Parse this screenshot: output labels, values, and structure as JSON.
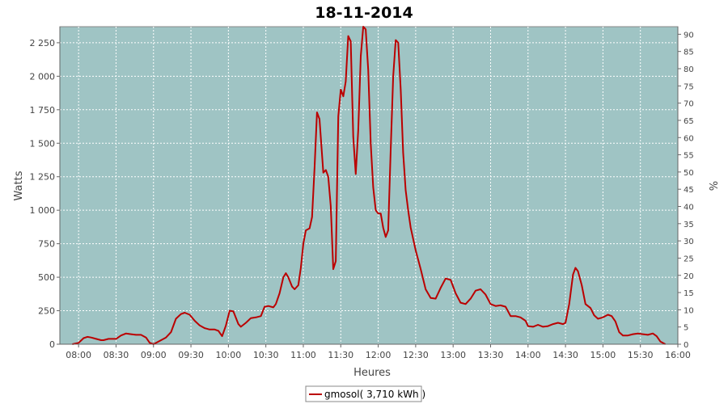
{
  "chart_data": {
    "type": "line",
    "title": "18-11-2014",
    "xlabel": "Heures",
    "ylabel": "Watts",
    "y2label": "%",
    "xlim_minutes": [
      465,
      960
    ],
    "ylim": [
      0,
      2370
    ],
    "y2lim": [
      0,
      92.2
    ],
    "x_ticks": [
      "08:00",
      "08:30",
      "09:00",
      "09:30",
      "10:00",
      "10:30",
      "11:00",
      "11:30",
      "12:00",
      "12:30",
      "13:00",
      "13:30",
      "14:00",
      "14:30",
      "15:00",
      "15:30",
      "16:00"
    ],
    "y_ticks": [
      {
        "value": 0,
        "label": "0"
      },
      {
        "value": 250,
        "label": "250"
      },
      {
        "value": 500,
        "label": "500"
      },
      {
        "value": 750,
        "label": "750"
      },
      {
        "value": 1000,
        "label": "1 000"
      },
      {
        "value": 1250,
        "label": "1 250"
      },
      {
        "value": 1500,
        "label": "1 500"
      },
      {
        "value": 1750,
        "label": "1 750"
      },
      {
        "value": 2000,
        "label": "2 000"
      },
      {
        "value": 2250,
        "label": "2 250"
      }
    ],
    "y2_ticks": [
      "0",
      "5",
      "10",
      "15",
      "20",
      "25",
      "30",
      "35",
      "40",
      "45",
      "50",
      "55",
      "60",
      "65",
      "70",
      "75",
      "80",
      "85",
      "90"
    ],
    "grid": true,
    "plot_background": "#9fc4c4",
    "legend_position": "bottom-center",
    "series": [
      {
        "name": "gmosol( 3,710 kWh )",
        "color": "#bb0000",
        "points": [
          [
            "07:55",
            0
          ],
          [
            "08:00",
            10
          ],
          [
            "08:04",
            45
          ],
          [
            "08:07",
            55
          ],
          [
            "08:10",
            50
          ],
          [
            "08:14",
            40
          ],
          [
            "08:18",
            30
          ],
          [
            "08:20",
            30
          ],
          [
            "08:24",
            40
          ],
          [
            "08:30",
            40
          ],
          [
            "08:34",
            65
          ],
          [
            "08:38",
            80
          ],
          [
            "08:42",
            75
          ],
          [
            "08:46",
            70
          ],
          [
            "08:50",
            70
          ],
          [
            "08:54",
            50
          ],
          [
            "08:57",
            10
          ],
          [
            "09:00",
            0
          ],
          [
            "09:04",
            20
          ],
          [
            "09:10",
            50
          ],
          [
            "09:14",
            90
          ],
          [
            "09:18",
            190
          ],
          [
            "09:22",
            225
          ],
          [
            "09:25",
            235
          ],
          [
            "09:29",
            220
          ],
          [
            "09:33",
            175
          ],
          [
            "09:37",
            140
          ],
          [
            "09:41",
            120
          ],
          [
            "09:45",
            110
          ],
          [
            "09:49",
            110
          ],
          [
            "09:52",
            100
          ],
          [
            "09:55",
            60
          ],
          [
            "09:58",
            140
          ],
          [
            "10:01",
            250
          ],
          [
            "10:04",
            245
          ],
          [
            "10:08",
            150
          ],
          [
            "10:10",
            130
          ],
          [
            "10:14",
            160
          ],
          [
            "10:18",
            195
          ],
          [
            "10:22",
            200
          ],
          [
            "10:26",
            210
          ],
          [
            "10:29",
            280
          ],
          [
            "10:32",
            285
          ],
          [
            "10:36",
            275
          ],
          [
            "10:38",
            300
          ],
          [
            "10:41",
            380
          ],
          [
            "10:44",
            500
          ],
          [
            "10:46",
            530
          ],
          [
            "10:48",
            500
          ],
          [
            "10:51",
            430
          ],
          [
            "10:53",
            410
          ],
          [
            "10:56",
            440
          ],
          [
            "10:58",
            570
          ],
          [
            "11:00",
            750
          ],
          [
            "11:02",
            850
          ],
          [
            "11:05",
            865
          ],
          [
            "11:07",
            950
          ],
          [
            "11:09",
            1320
          ],
          [
            "11:11",
            1730
          ],
          [
            "11:13",
            1680
          ],
          [
            "11:16",
            1280
          ],
          [
            "11:18",
            1300
          ],
          [
            "11:20",
            1250
          ],
          [
            "11:22",
            1030
          ],
          [
            "11:24",
            560
          ],
          [
            "11:26",
            620
          ],
          [
            "11:28",
            1700
          ],
          [
            "11:30",
            1900
          ],
          [
            "11:32",
            1850
          ],
          [
            "11:34",
            1960
          ],
          [
            "11:36",
            2300
          ],
          [
            "11:38",
            2260
          ],
          [
            "11:40",
            1550
          ],
          [
            "11:42",
            1270
          ],
          [
            "11:44",
            1600
          ],
          [
            "11:46",
            2150
          ],
          [
            "11:48",
            2370
          ],
          [
            "11:50",
            2350
          ],
          [
            "11:52",
            2050
          ],
          [
            "11:54",
            1500
          ],
          [
            "11:56",
            1170
          ],
          [
            "11:58",
            1000
          ],
          [
            "12:00",
            975
          ],
          [
            "12:02",
            975
          ],
          [
            "12:04",
            870
          ],
          [
            "12:06",
            800
          ],
          [
            "12:08",
            850
          ],
          [
            "12:10",
            1450
          ],
          [
            "12:12",
            2000
          ],
          [
            "12:14",
            2270
          ],
          [
            "12:16",
            2250
          ],
          [
            "12:18",
            1900
          ],
          [
            "12:20",
            1430
          ],
          [
            "12:22",
            1150
          ],
          [
            "12:24",
            1000
          ],
          [
            "12:26",
            870
          ],
          [
            "12:30",
            700
          ],
          [
            "12:34",
            560
          ],
          [
            "12:38",
            410
          ],
          [
            "12:42",
            345
          ],
          [
            "12:46",
            340
          ],
          [
            "12:50",
            420
          ],
          [
            "12:54",
            490
          ],
          [
            "12:58",
            480
          ],
          [
            "13:02",
            380
          ],
          [
            "13:06",
            310
          ],
          [
            "13:10",
            300
          ],
          [
            "13:14",
            340
          ],
          [
            "13:18",
            400
          ],
          [
            "13:22",
            410
          ],
          [
            "13:26",
            370
          ],
          [
            "13:30",
            300
          ],
          [
            "13:34",
            285
          ],
          [
            "13:38",
            290
          ],
          [
            "13:42",
            280
          ],
          [
            "13:46",
            210
          ],
          [
            "13:50",
            210
          ],
          [
            "13:54",
            200
          ],
          [
            "13:58",
            175
          ],
          [
            "14:00",
            135
          ],
          [
            "14:04",
            130
          ],
          [
            "14:08",
            145
          ],
          [
            "14:12",
            130
          ],
          [
            "14:16",
            135
          ],
          [
            "14:20",
            150
          ],
          [
            "14:24",
            160
          ],
          [
            "14:28",
            150
          ],
          [
            "14:30",
            160
          ],
          [
            "14:33",
            300
          ],
          [
            "14:36",
            520
          ],
          [
            "14:38",
            570
          ],
          [
            "14:40",
            545
          ],
          [
            "14:43",
            440
          ],
          [
            "14:46",
            300
          ],
          [
            "14:50",
            270
          ],
          [
            "14:53",
            215
          ],
          [
            "14:56",
            190
          ],
          [
            "15:00",
            200
          ],
          [
            "15:04",
            220
          ],
          [
            "15:07",
            210
          ],
          [
            "15:10",
            170
          ],
          [
            "15:13",
            90
          ],
          [
            "15:16",
            65
          ],
          [
            "15:20",
            65
          ],
          [
            "15:24",
            75
          ],
          [
            "15:28",
            80
          ],
          [
            "15:32",
            75
          ],
          [
            "15:36",
            70
          ],
          [
            "15:40",
            80
          ],
          [
            "15:43",
            60
          ],
          [
            "15:46",
            20
          ],
          [
            "15:50",
            0
          ]
        ]
      }
    ]
  }
}
